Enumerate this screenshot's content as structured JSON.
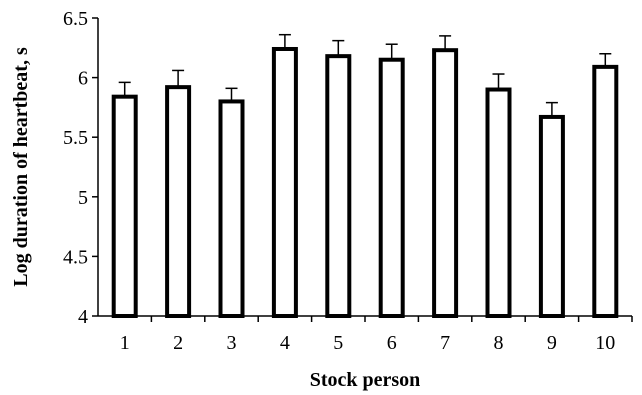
{
  "chart_data": {
    "type": "bar",
    "xlabel": "Stock person",
    "ylabel": "Log duration of heartbeat, s",
    "ylim": [
      4,
      6.5
    ],
    "yticks": [
      "4",
      "4.5",
      "5",
      "5.5",
      "6",
      "6.5"
    ],
    "categories": [
      "1",
      "2",
      "3",
      "4",
      "5",
      "6",
      "7",
      "8",
      "9",
      "10"
    ],
    "values": [
      5.84,
      5.92,
      5.8,
      6.24,
      6.18,
      6.15,
      6.23,
      5.9,
      5.67,
      6.09
    ],
    "error_plus": [
      0.12,
      0.14,
      0.11,
      0.12,
      0.13,
      0.13,
      0.12,
      0.13,
      0.12,
      0.11
    ],
    "grid": false,
    "legend": "none",
    "colors": {
      "bar_fill": "#ffffff",
      "bar_stroke": "#000000"
    }
  }
}
